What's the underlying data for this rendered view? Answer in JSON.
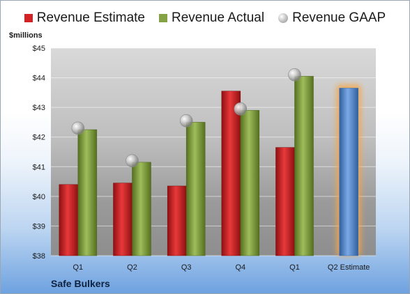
{
  "legend": {
    "estimate": "Revenue Estimate",
    "actual": "Revenue Actual",
    "gaap": "Revenue GAAP"
  },
  "company": "Safe Bulkers",
  "colors": {
    "estimate": "#d42224",
    "actual": "#86a246",
    "projected": "#5b8fd1",
    "gaap_marker": "#b0b0b0"
  },
  "chart_data": {
    "type": "bar",
    "ylabel": "$millions",
    "ylim": [
      38,
      45
    ],
    "yticks": [
      "$38",
      "$39",
      "$40",
      "$41",
      "$42",
      "$43",
      "$44",
      "$45"
    ],
    "categories": [
      "Q1",
      "Q2",
      "Q3",
      "Q4",
      "Q1",
      "Q2 Estimate"
    ],
    "series": [
      {
        "name": "Revenue Estimate",
        "values": [
          40.4,
          40.45,
          40.35,
          43.55,
          41.65,
          43.65
        ]
      },
      {
        "name": "Revenue Actual",
        "values": [
          42.25,
          41.15,
          42.5,
          42.9,
          44.05,
          null
        ]
      },
      {
        "name": "Revenue GAAP",
        "values": [
          42.3,
          41.2,
          42.55,
          42.95,
          44.1,
          null
        ]
      }
    ],
    "grid": true,
    "legend_position": "top"
  }
}
